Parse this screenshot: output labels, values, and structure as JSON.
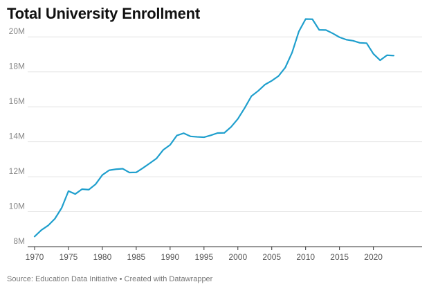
{
  "chart_data": {
    "type": "line",
    "title": "Total University Enrollment",
    "xlabel": "",
    "ylabel": "",
    "xlim": [
      1970,
      2023
    ],
    "ylim": [
      8,
      21
    ],
    "y_ticks": [
      8,
      10,
      12,
      14,
      16,
      18,
      20
    ],
    "y_tick_labels": [
      "8M",
      "10M",
      "12M",
      "14M",
      "16M",
      "18M",
      "20M"
    ],
    "x_ticks": [
      1970,
      1975,
      1980,
      1985,
      1990,
      1995,
      2000,
      2005,
      2010,
      2015,
      2020
    ],
    "x_tick_labels": [
      "1970",
      "1975",
      "1980",
      "1985",
      "1990",
      "1995",
      "2000",
      "2005",
      "2010",
      "2015",
      "2020"
    ],
    "grid": "horizontal",
    "line_color": "#1f9fcd",
    "series": [
      {
        "x": [
          1970,
          1971,
          1972,
          1973,
          1974,
          1975,
          1976,
          1977,
          1978,
          1979,
          1980,
          1981,
          1982,
          1983,
          1984,
          1985,
          1986,
          1987,
          1988,
          1989,
          1990,
          1991,
          1992,
          1993,
          1994,
          1995,
          1996,
          1997,
          1998,
          1999,
          2000,
          2001,
          2002,
          2003,
          2004,
          2005,
          2006,
          2007,
          2008,
          2009,
          2010,
          2011,
          2012,
          2013,
          2014,
          2015,
          2016,
          2017,
          2018,
          2019,
          2020,
          2021,
          2022,
          2023
        ],
        "values": [
          8.58,
          8.95,
          9.21,
          9.6,
          10.22,
          11.18,
          11.01,
          11.29,
          11.26,
          11.57,
          12.1,
          12.37,
          12.43,
          12.46,
          12.24,
          12.25,
          12.5,
          12.77,
          13.05,
          13.54,
          13.82,
          14.36,
          14.49,
          14.31,
          14.28,
          14.26,
          14.37,
          14.5,
          14.51,
          14.85,
          15.31,
          15.93,
          16.61,
          16.91,
          17.27,
          17.49,
          17.76,
          18.25,
          19.1,
          20.31,
          21.02,
          21.01,
          20.4,
          20.39,
          20.2,
          19.98,
          19.84,
          19.78,
          19.66,
          19.64,
          19.03,
          18.66,
          18.95,
          18.93
        ]
      }
    ]
  },
  "footer": {
    "text": "Source: Education Data Initiative • Created with Datawrapper"
  }
}
